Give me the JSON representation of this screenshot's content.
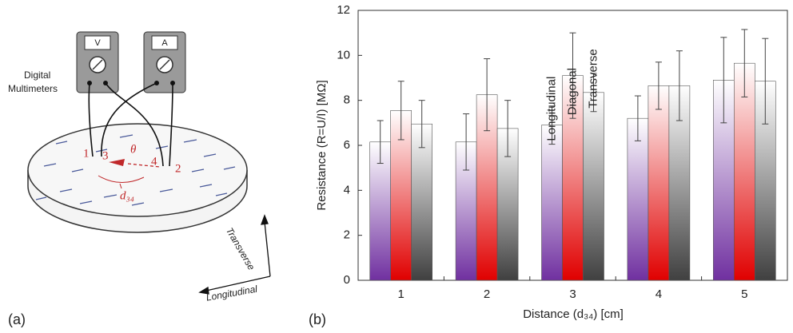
{
  "diagram": {
    "panel_label": "(a)",
    "meter_label_lines": [
      "Digital",
      "Multimeters"
    ],
    "voltmeter": "V",
    "ammeter": "A",
    "points": [
      "1",
      "3",
      "4",
      "2"
    ],
    "angle": "θ",
    "distance": "d₃₄",
    "axis_transverse": "Transverse",
    "axis_longitudinal": "Longitudinal"
  },
  "chart_data": {
    "type": "bar",
    "panel_label": "(b)",
    "x_label": "Distance (d₃₄) [cm]",
    "y_label": "Resistance (R=U/I) [MΩ]",
    "categories": [
      "1",
      "2",
      "3",
      "4",
      "5"
    ],
    "series": [
      {
        "name": "Longitudinal",
        "color": "#7030a0",
        "values": [
          6.15,
          6.15,
          6.9,
          7.2,
          8.9
        ],
        "errors": [
          0.95,
          1.25,
          0.85,
          1.0,
          1.9
        ]
      },
      {
        "name": "Diagonal",
        "color": "#e00000",
        "values": [
          7.55,
          8.25,
          9.1,
          8.65,
          9.65
        ],
        "errors": [
          1.3,
          1.6,
          1.9,
          1.05,
          1.5
        ]
      },
      {
        "name": "Transverse",
        "color": "#404040",
        "values": [
          6.95,
          6.75,
          8.35,
          8.65,
          8.85
        ],
        "errors": [
          1.05,
          1.25,
          0.85,
          1.55,
          1.9
        ]
      }
    ],
    "ylim": [
      0,
      12
    ],
    "yticks": [
      0,
      2,
      4,
      6,
      8,
      10,
      12
    ],
    "grid": false
  }
}
